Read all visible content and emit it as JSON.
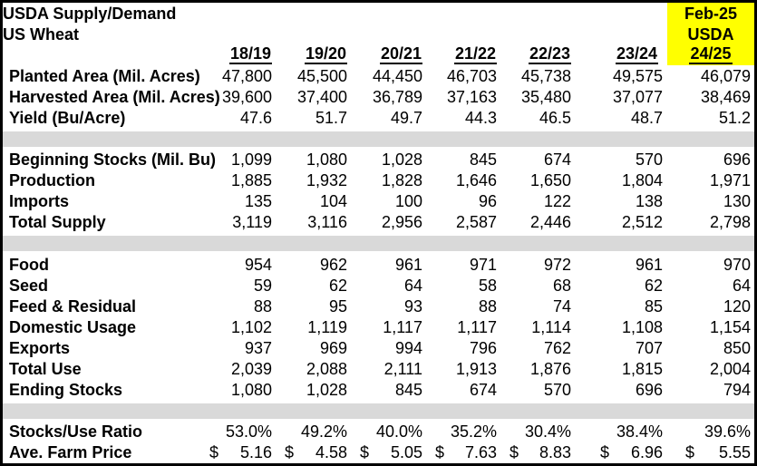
{
  "header": {
    "title_line1": "USDA Supply/Demand",
    "title_line2": "US Wheat",
    "columns": [
      "18/19",
      "19/20",
      "20/21",
      "21/22",
      "22/23",
      "23/24"
    ]
  },
  "highlight": {
    "line1": "Feb-25",
    "line2": "USDA",
    "column": "24/25",
    "bg_color": "#FFFF00"
  },
  "colors": {
    "separator_band": "#D9D9D9",
    "border": "#000000",
    "background": "#FFFFFF"
  },
  "table": {
    "currency": "$",
    "rows": [
      {
        "label": "Planted Area (Mil. Acres)",
        "values": [
          "47,800",
          "45,500",
          "44,450",
          "46,703",
          "45,738",
          "49,575",
          "46,079"
        ]
      },
      {
        "label": "Harvested Area (Mil. Acres)",
        "values": [
          "39,600",
          "37,400",
          "36,789",
          "37,163",
          "35,480",
          "37,077",
          "38,469"
        ]
      },
      {
        "label": "Yield (Bu/Acre)",
        "values": [
          "47.6",
          "51.7",
          "49.7",
          "44.3",
          "46.5",
          "48.7",
          "51.2"
        ]
      },
      {
        "label": "Beginning Stocks (Mil. Bu)",
        "values": [
          "1,099",
          "1,080",
          "1,028",
          "845",
          "674",
          "570",
          "696"
        ]
      },
      {
        "label": "Production",
        "values": [
          "1,885",
          "1,932",
          "1,828",
          "1,646",
          "1,650",
          "1,804",
          "1,971"
        ]
      },
      {
        "label": "Imports",
        "values": [
          "135",
          "104",
          "100",
          "96",
          "122",
          "138",
          "130"
        ]
      },
      {
        "label": "Total Supply",
        "values": [
          "3,119",
          "3,116",
          "2,956",
          "2,587",
          "2,446",
          "2,512",
          "2,798"
        ]
      },
      {
        "label": "Food",
        "values": [
          "954",
          "962",
          "961",
          "971",
          "972",
          "961",
          "970"
        ]
      },
      {
        "label": "Seed",
        "values": [
          "59",
          "62",
          "64",
          "58",
          "68",
          "62",
          "64"
        ]
      },
      {
        "label": "Feed & Residual",
        "values": [
          "88",
          "95",
          "93",
          "88",
          "74",
          "85",
          "120"
        ]
      },
      {
        "label": "Domestic Usage",
        "values": [
          "1,102",
          "1,119",
          "1,117",
          "1,117",
          "1,114",
          "1,108",
          "1,154"
        ]
      },
      {
        "label": "Exports",
        "values": [
          "937",
          "969",
          "994",
          "796",
          "762",
          "707",
          "850"
        ]
      },
      {
        "label": "Total Use",
        "values": [
          "2,039",
          "2,088",
          "2,111",
          "1,913",
          "1,876",
          "1,815",
          "2,004"
        ]
      },
      {
        "label": "Ending Stocks",
        "values": [
          "1,080",
          "1,028",
          "845",
          "674",
          "570",
          "696",
          "794"
        ]
      },
      {
        "label": "Stocks/Use Ratio",
        "values": [
          "53.0%",
          "49.2%",
          "40.0%",
          "35.2%",
          "30.4%",
          "38.4%",
          "39.6%"
        ]
      },
      {
        "label": "Ave. Farm Price",
        "values": [
          "5.16",
          "4.58",
          "5.05",
          "7.63",
          "8.83",
          "6.96",
          "5.55"
        ]
      }
    ]
  }
}
